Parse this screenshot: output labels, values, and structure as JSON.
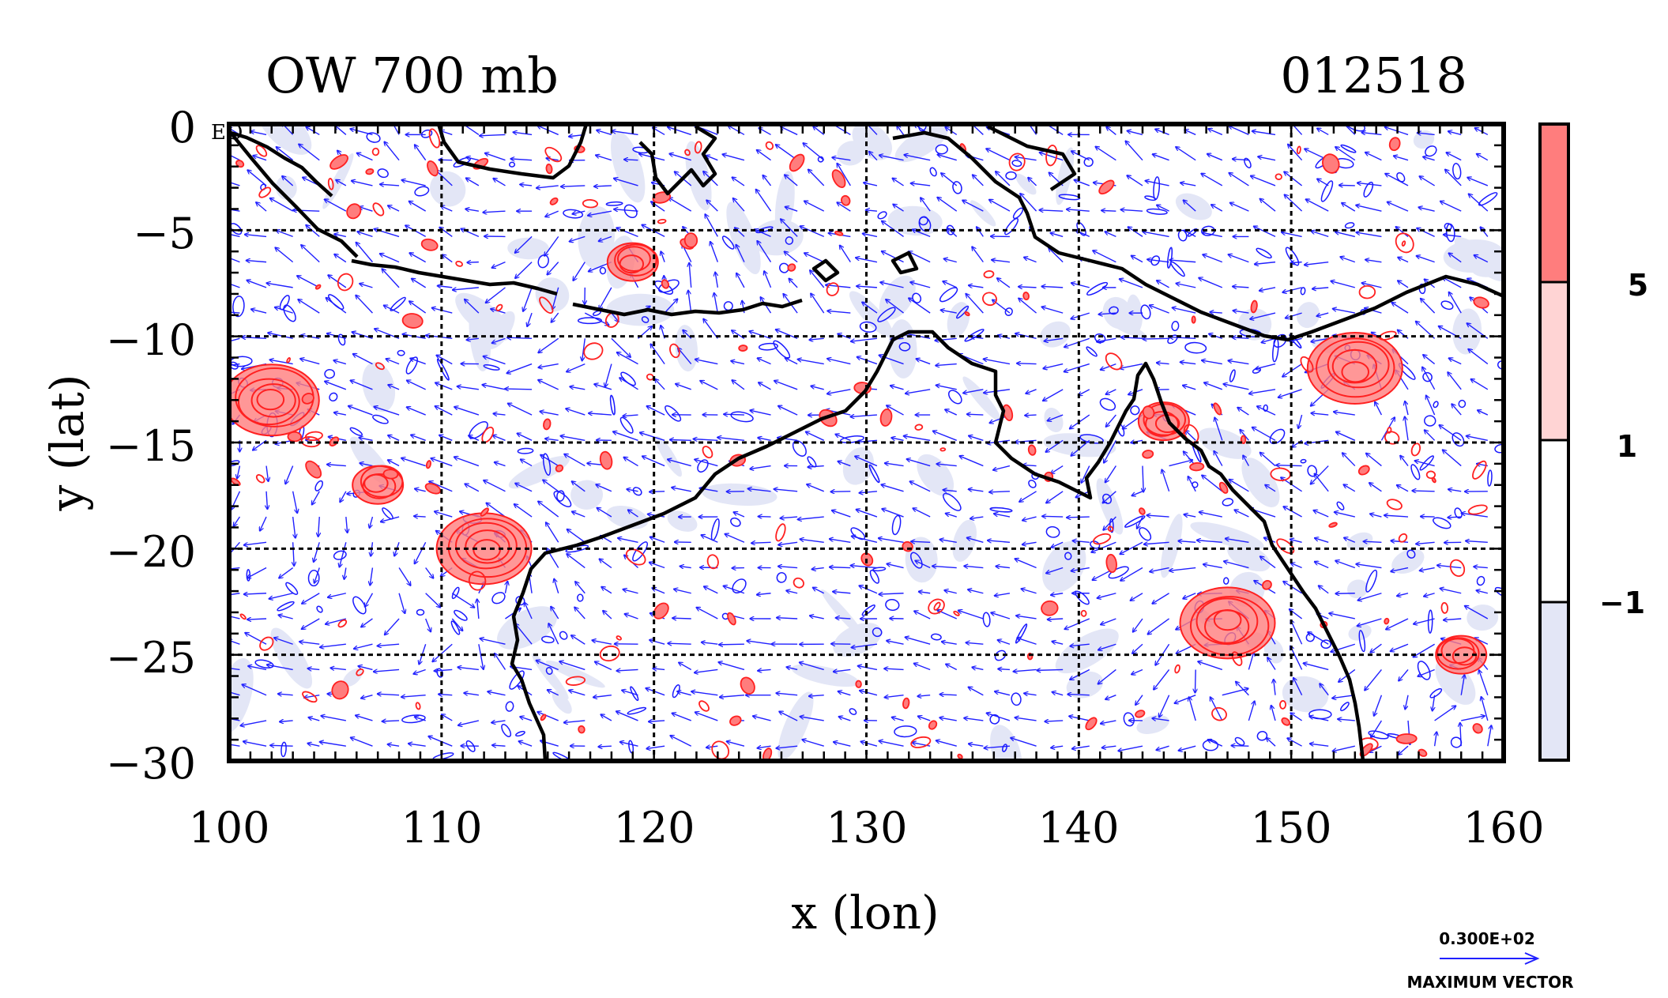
{
  "chart_data": {
    "type": "contour_vector_map",
    "title": "OW 700 mb",
    "time_label": "012518",
    "xlabel": "x (lon)",
    "ylabel": "y (lat)",
    "xlim": [
      100,
      160
    ],
    "ylim": [
      -30,
      0
    ],
    "x_ticks": [
      100,
      110,
      120,
      130,
      140,
      150,
      160
    ],
    "x_tick_labels": [
      "100",
      "110",
      "120",
      "130",
      "140",
      "150",
      "160"
    ],
    "y_ticks": [
      0,
      -5,
      -10,
      -15,
      -20,
      -25,
      -30
    ],
    "y_tick_labels": [
      "0",
      "−5",
      "−10",
      "−15",
      "−20",
      "−25",
      "−30"
    ],
    "corner_label": "EQ",
    "colorbar": {
      "levels": [
        -1,
        1,
        5
      ],
      "level_labels": [
        "−1",
        "1",
        "5"
      ],
      "colors": [
        "#e3e6f6",
        "#ffffff",
        "#ffd4d4",
        "#ff7d7d"
      ]
    },
    "vector_key": {
      "value_label": "0.300E+02",
      "caption": "MAXIMUM VECTOR"
    },
    "contour_colors": {
      "positive": "#ff2020",
      "negative": "#1a1aff",
      "coast": "#000000",
      "vectors": "#2020ff"
    },
    "positive_features": [
      {
        "lon": 147,
        "lat": -23.5,
        "intensity": "high"
      },
      {
        "lon": 102,
        "lat": -13,
        "intensity": "high"
      },
      {
        "lon": 112,
        "lat": -20,
        "intensity": "high"
      },
      {
        "lon": 107,
        "lat": -17,
        "intensity": "moderate"
      },
      {
        "lon": 153,
        "lat": -11.5,
        "intensity": "high"
      },
      {
        "lon": 144,
        "lat": -14,
        "intensity": "moderate"
      },
      {
        "lon": 158,
        "lat": -25,
        "intensity": "moderate"
      },
      {
        "lon": 119,
        "lat": -6.5,
        "intensity": "moderate"
      }
    ]
  }
}
